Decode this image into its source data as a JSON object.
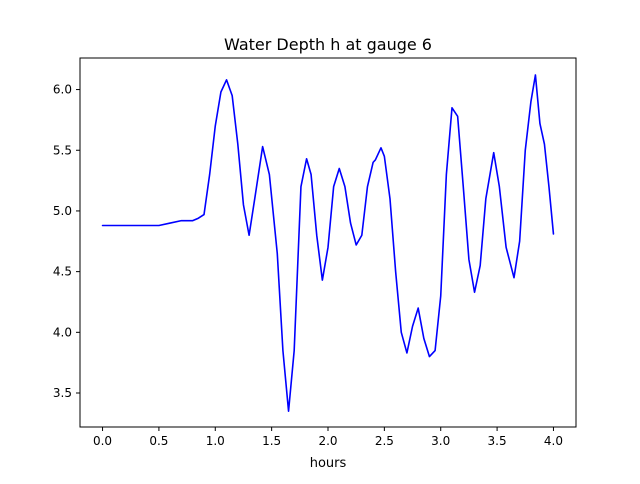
{
  "chart_data": {
    "type": "line",
    "title": "Water Depth h at gauge 6",
    "xlabel": "hours",
    "ylabel": "",
    "xlim": [
      -0.2,
      4.2
    ],
    "ylim": [
      3.22,
      6.26
    ],
    "xticks": [
      0.0,
      0.5,
      1.0,
      1.5,
      2.0,
      2.5,
      3.0,
      3.5,
      4.0
    ],
    "xtick_labels": [
      "0.0",
      "0.5",
      "1.0",
      "1.5",
      "2.0",
      "2.5",
      "3.0",
      "3.5",
      "4.0"
    ],
    "yticks": [
      3.5,
      4.0,
      4.5,
      5.0,
      5.5,
      6.0
    ],
    "ytick_labels": [
      "3.5",
      "4.0",
      "4.5",
      "5.0",
      "5.5",
      "6.0"
    ],
    "grid": false,
    "legend": "none",
    "series": [
      {
        "color": "#0000ff",
        "x": [
          0.0,
          0.2,
          0.4,
          0.5,
          0.6,
          0.7,
          0.8,
          0.85,
          0.9,
          0.95,
          1.0,
          1.05,
          1.1,
          1.15,
          1.2,
          1.25,
          1.3,
          1.35,
          1.42,
          1.48,
          1.55,
          1.6,
          1.65,
          1.7,
          1.76,
          1.81,
          1.85,
          1.9,
          1.95,
          2.0,
          2.05,
          2.1,
          2.15,
          2.2,
          2.25,
          2.3,
          2.35,
          2.4,
          2.42,
          2.47,
          2.5,
          2.55,
          2.6,
          2.65,
          2.7,
          2.75,
          2.8,
          2.85,
          2.9,
          2.95,
          3.0,
          3.05,
          3.1,
          3.15,
          3.2,
          3.25,
          3.3,
          3.35,
          3.4,
          3.47,
          3.52,
          3.58,
          3.65,
          3.7,
          3.75,
          3.8,
          3.84,
          3.88,
          3.92,
          3.96,
          4.0
        ],
        "y": [
          4.88,
          4.88,
          4.88,
          4.88,
          4.9,
          4.92,
          4.92,
          4.94,
          4.97,
          5.3,
          5.7,
          5.98,
          6.08,
          5.95,
          5.55,
          5.05,
          4.8,
          5.1,
          5.53,
          5.3,
          4.65,
          3.85,
          3.35,
          3.85,
          5.2,
          5.43,
          5.3,
          4.8,
          4.43,
          4.7,
          5.2,
          5.35,
          5.2,
          4.9,
          4.72,
          4.8,
          5.2,
          5.4,
          5.42,
          5.52,
          5.45,
          5.1,
          4.5,
          4.0,
          3.83,
          4.05,
          4.2,
          3.95,
          3.8,
          3.85,
          4.3,
          5.3,
          5.85,
          5.78,
          5.2,
          4.6,
          4.33,
          4.55,
          5.1,
          5.48,
          5.2,
          4.7,
          4.45,
          4.75,
          5.5,
          5.9,
          6.12,
          5.72,
          5.55,
          5.2,
          4.81
        ]
      }
    ]
  }
}
